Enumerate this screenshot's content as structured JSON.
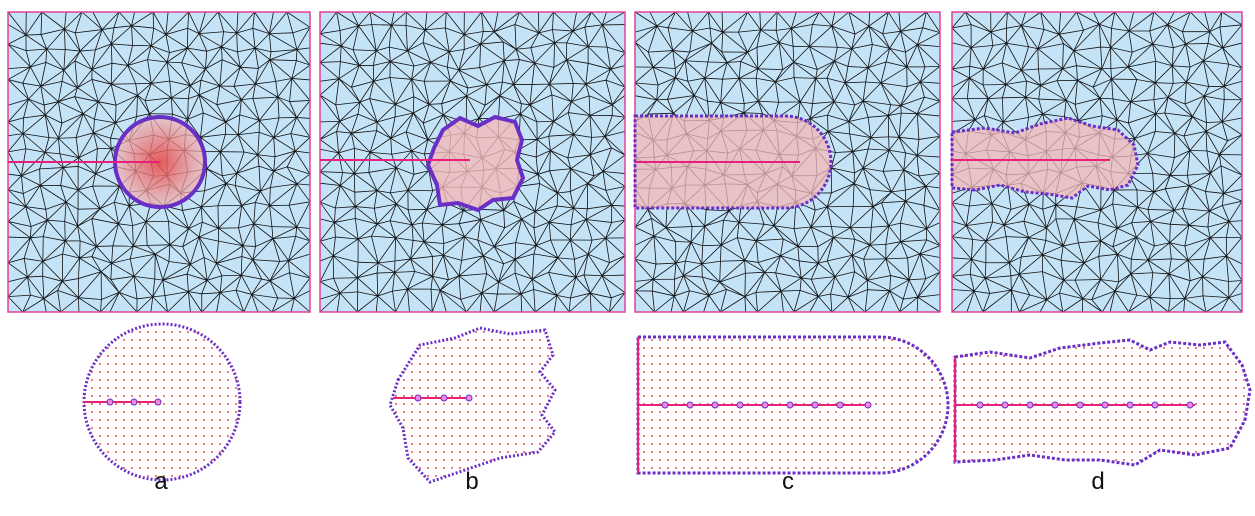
{
  "panels": [
    {
      "id": "a",
      "label": "a",
      "domain_shape": "circle"
    },
    {
      "id": "b",
      "label": "b",
      "domain_shape": "irregular-star"
    },
    {
      "id": "c",
      "label": "c",
      "domain_shape": "rounded-rectangle"
    },
    {
      "id": "d",
      "label": "d",
      "domain_shape": "irregular-elongated"
    }
  ],
  "colors": {
    "mesh_background": "#c5e3f7",
    "mesh_lines": "#111111",
    "border_nodes": "#e0409a",
    "crack_line": "#e8207a",
    "region_outline": "#6a2fc6",
    "particles": "#e02020",
    "region_fill": "#f2b8b8"
  }
}
